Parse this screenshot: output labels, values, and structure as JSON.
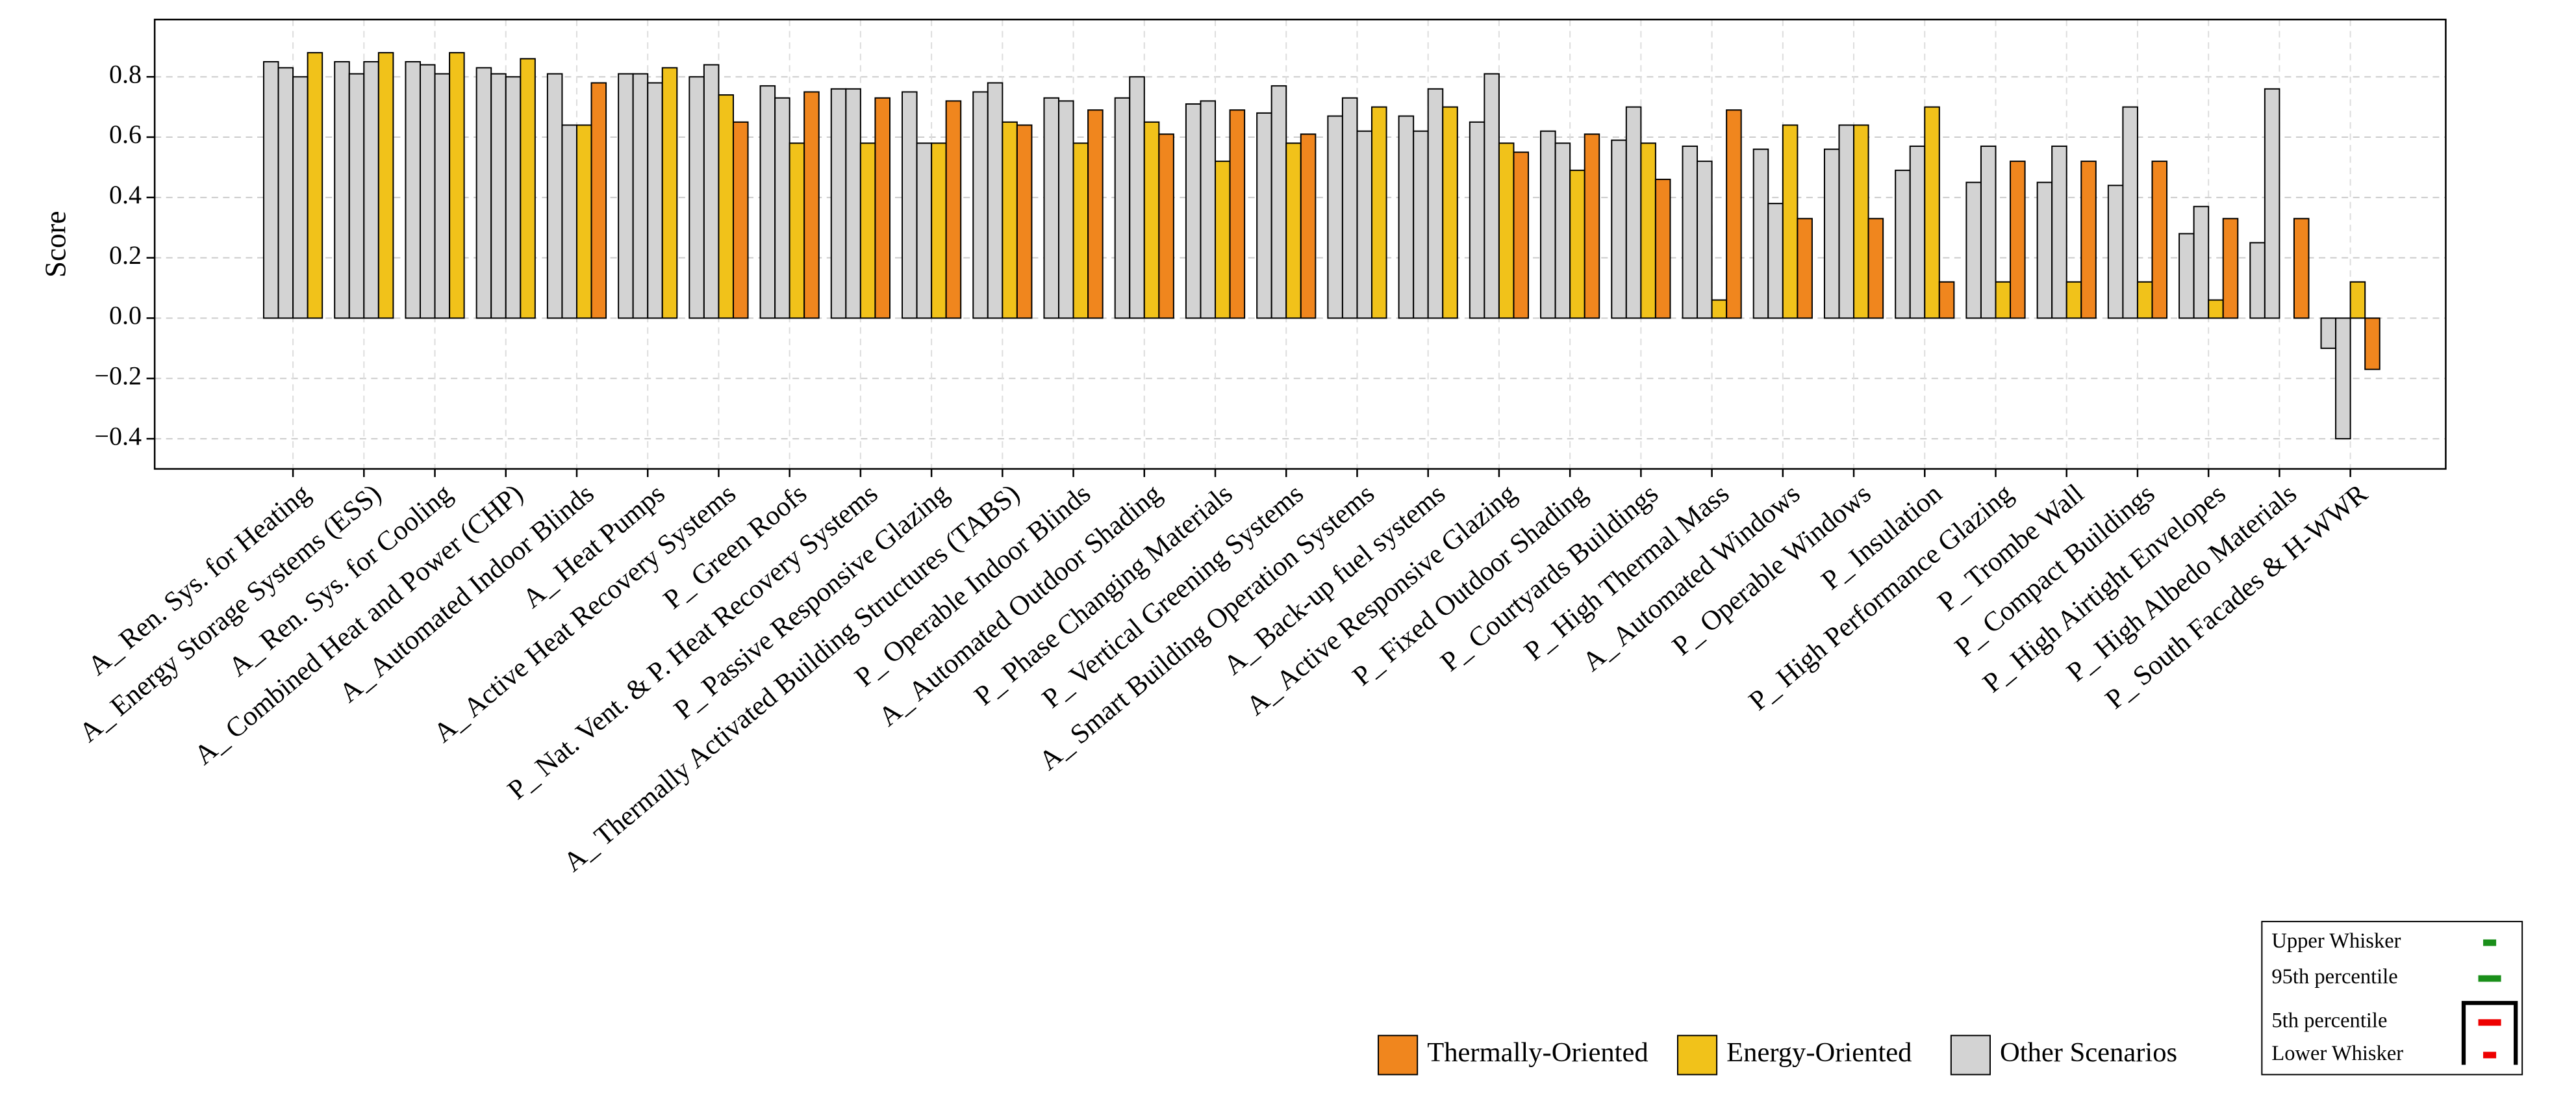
{
  "chart_data": {
    "type": "bar",
    "y_label": "Score",
    "categories": [
      "A_ Ren. Sys. for Heating",
      "A_ Energy Storage Systems (ESS)",
      "A_ Ren. Sys. for Cooling",
      "A_ Combined Heat and Power (CHP)",
      "A_ Automated Indoor Blinds",
      "A_ Heat Pumps",
      "A_ Active Heat Recovery Systems",
      "P_ Green Roofs",
      "P_ Nat. Vent. & P. Heat Recovery Systems",
      "P_ Passive Responsive Glazing",
      "A_ Thermally Activated Building Structures (TABS)",
      "P_ Operable Indoor Blinds",
      "A_ Automated Outdoor Shading",
      "P_ Phase Changing Materials",
      "P_ Vertical Greening Systems",
      "A_ Smart Building Operation Systems",
      "A_ Back-up fuel systems",
      "A_ Active Responsive Glazing",
      "P_ Fixed Outdoor Shading",
      "P_ Courtyards Buildings",
      "P_ High Thermal Mass",
      "A_ Automated Windows",
      "P_ Operable Windows",
      "P_ Insulation",
      "P_ High Performance Glazing",
      "P_ Trombe Wall",
      "P_ Compact Buildings",
      "P_ High Airtight Envelopes",
      "P_ High Albedo Materials",
      "P_ South Facades & H-WWR"
    ],
    "values": [
      [
        0.85,
        0.83,
        0.8,
        0.88
      ],
      [
        0.85,
        0.81,
        0.85,
        0.88
      ],
      [
        0.85,
        0.84,
        0.81,
        0.88
      ],
      [
        0.83,
        0.81,
        0.8,
        0.86
      ],
      [
        0.81,
        0.64,
        0.64,
        0.78
      ],
      [
        0.81,
        0.81,
        0.78,
        0.83
      ],
      [
        0.8,
        0.84,
        0.74,
        0.65
      ],
      [
        0.77,
        0.73,
        0.58,
        0.75
      ],
      [
        0.76,
        0.76,
        0.58,
        0.73
      ],
      [
        0.75,
        0.58,
        0.58,
        0.72
      ],
      [
        0.75,
        0.78,
        0.65,
        0.64
      ],
      [
        0.73,
        0.72,
        0.58,
        0.69
      ],
      [
        0.73,
        0.8,
        0.65,
        0.61
      ],
      [
        0.71,
        0.72,
        0.52,
        0.69
      ],
      [
        0.68,
        0.77,
        0.58,
        0.61
      ],
      [
        0.67,
        0.73,
        0.62,
        0.7
      ],
      [
        0.67,
        0.62,
        0.76,
        0.7
      ],
      [
        0.65,
        0.81,
        0.58,
        0.55
      ],
      [
        0.62,
        0.58,
        0.49,
        0.61
      ],
      [
        0.59,
        0.7,
        0.58,
        0.46
      ],
      [
        0.57,
        0.52,
        0.06,
        0.69
      ],
      [
        0.56,
        0.38,
        0.64,
        0.33
      ],
      [
        0.56,
        0.64,
        0.64,
        0.33
      ],
      [
        0.49,
        0.57,
        0.7,
        0.12
      ],
      [
        0.45,
        0.57,
        0.12,
        0.52
      ],
      [
        0.45,
        0.57,
        0.12,
        0.52
      ],
      [
        0.44,
        0.7,
        0.12,
        0.52
      ],
      [
        0.28,
        0.37,
        0.06,
        0.33
      ],
      [
        0.25,
        0.76,
        0.0,
        0.33
      ],
      [
        -0.1,
        -0.4,
        0.12,
        -0.17
      ]
    ],
    "classes": [
      [
        2,
        2,
        2,
        1
      ],
      [
        2,
        2,
        2,
        1
      ],
      [
        2,
        2,
        2,
        1
      ],
      [
        2,
        2,
        2,
        1
      ],
      [
        2,
        2,
        1,
        0
      ],
      [
        2,
        2,
        2,
        1
      ],
      [
        2,
        2,
        1,
        0
      ],
      [
        2,
        2,
        1,
        0
      ],
      [
        2,
        2,
        1,
        0
      ],
      [
        2,
        2,
        1,
        0
      ],
      [
        2,
        2,
        1,
        0
      ],
      [
        2,
        2,
        1,
        0
      ],
      [
        2,
        2,
        1,
        0
      ],
      [
        2,
        2,
        1,
        0
      ],
      [
        2,
        2,
        1,
        0
      ],
      [
        2,
        2,
        2,
        1
      ],
      [
        2,
        2,
        2,
        1
      ],
      [
        2,
        2,
        1,
        0
      ],
      [
        2,
        2,
        1,
        0
      ],
      [
        2,
        2,
        1,
        0
      ],
      [
        2,
        2,
        1,
        0
      ],
      [
        2,
        2,
        1,
        0
      ],
      [
        2,
        2,
        1,
        0
      ],
      [
        2,
        2,
        1,
        0
      ],
      [
        2,
        2,
        1,
        0
      ],
      [
        2,
        2,
        1,
        0
      ],
      [
        2,
        2,
        1,
        0
      ],
      [
        2,
        2,
        1,
        0
      ],
      [
        2,
        2,
        1,
        0
      ],
      [
        2,
        2,
        1,
        0
      ]
    ],
    "legend": [
      {
        "name": "Thermally-Oriented",
        "color": "#f0861e"
      },
      {
        "name": "Energy-Oriented",
        "color": "#f1c21a"
      },
      {
        "name": "Other Scenarios",
        "color": "#d3d3d3"
      }
    ],
    "whisker_legend": [
      "Upper Whisker",
      "95th percentile",
      "5th percentile",
      "Lower Whisker"
    ],
    "ylim": [
      -0.5,
      0.99
    ],
    "yticks": [
      {
        "value": -0.4,
        "label": "−0.4"
      },
      {
        "value": -0.2,
        "label": "−0.2"
      },
      {
        "value": 0,
        "label": "0.0"
      },
      {
        "value": 0.2,
        "label": "0.2"
      },
      {
        "value": 0.4,
        "label": "0.4"
      },
      {
        "value": 0.6,
        "label": "0.6"
      },
      {
        "value": 0.8,
        "label": "0.8"
      }
    ],
    "grid": true
  }
}
